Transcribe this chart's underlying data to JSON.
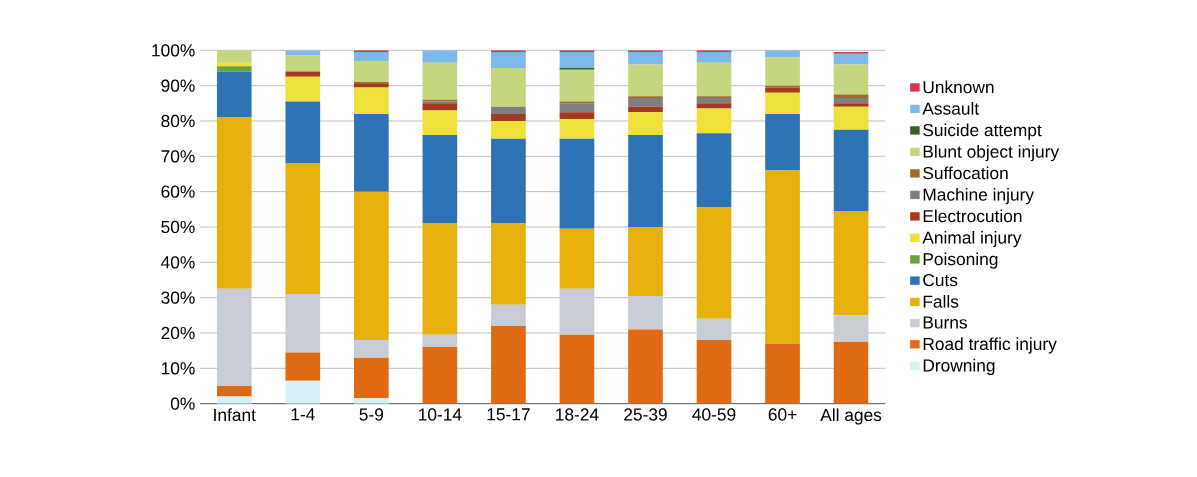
{
  "chart_data": {
    "type": "bar",
    "stacked": true,
    "categories": [
      "Infant",
      "1-4",
      "5-9",
      "10-14",
      "15-17",
      "18-24",
      "25-39",
      "40-59",
      "60+",
      "All ages"
    ],
    "series": [
      {
        "name": "Drowning",
        "color": "#d8f0f8",
        "values": [
          2,
          6.5,
          1.5,
          0,
          0,
          0,
          0,
          0,
          0,
          0
        ]
      },
      {
        "name": "Road traffic injury",
        "color": "#e06a14",
        "values": [
          3,
          8,
          11.5,
          16,
          22,
          19.5,
          21,
          18,
          17,
          17.5
        ]
      },
      {
        "name": "Burns",
        "color": "#c8ccd4",
        "values": [
          27.5,
          16.5,
          5,
          3.5,
          6,
          13,
          9.5,
          6,
          0,
          7.5
        ]
      },
      {
        "name": "Falls",
        "color": "#e8b00c",
        "values": [
          48.5,
          37,
          42,
          31.5,
          23,
          17,
          19.5,
          31.5,
          49,
          29.5
        ]
      },
      {
        "name": "Cuts",
        "color": "#2e74b5",
        "values": [
          13,
          17.5,
          22,
          25,
          24,
          25.5,
          26,
          21,
          16,
          23
        ]
      },
      {
        "name": "Poisoning",
        "color": "#6aa33a",
        "values": [
          1.5,
          0,
          0,
          0,
          0,
          0,
          0,
          0,
          0,
          0
        ]
      },
      {
        "name": "Animal injury",
        "color": "#f0e03a",
        "values": [
          1,
          7,
          7.5,
          7,
          5,
          5.5,
          6.5,
          7,
          6,
          6.5
        ]
      },
      {
        "name": "Electrocution",
        "color": "#a33a1e",
        "values": [
          0,
          1.5,
          1,
          2,
          2,
          2,
          1.5,
          1.5,
          1.5,
          1
        ]
      },
      {
        "name": "Machine injury",
        "color": "#7f7f7f",
        "values": [
          0,
          0,
          0,
          0.5,
          2,
          2.5,
          2.5,
          1.5,
          0,
          1.5
        ]
      },
      {
        "name": "Suffocation",
        "color": "#9c6b2e",
        "values": [
          0,
          0,
          0.5,
          0.5,
          0,
          0.5,
          0.5,
          0.5,
          0.5,
          1
        ]
      },
      {
        "name": "Blunt object injury",
        "color": "#c4d67e",
        "values": [
          3.5,
          4.5,
          6,
          10.5,
          11,
          9,
          9,
          9.5,
          8,
          8.5
        ]
      },
      {
        "name": "Suicide attempt",
        "color": "#3a5f2a",
        "values": [
          0,
          0,
          0,
          0,
          0,
          0.5,
          0,
          0,
          0,
          0
        ]
      },
      {
        "name": "Assault",
        "color": "#7db9e8",
        "values": [
          0,
          1.5,
          2.5,
          3.5,
          4.5,
          4.5,
          3.5,
          3,
          2,
          3
        ]
      },
      {
        "name": "Unknown",
        "color": "#d6335a",
        "values": [
          0,
          0,
          0.5,
          0,
          0.5,
          0.5,
          0.5,
          0.5,
          0,
          0.5
        ]
      }
    ],
    "ylim": [
      0,
      100
    ],
    "yticks": [
      {
        "value": 0,
        "label": "0%"
      },
      {
        "value": 10,
        "label": "10%"
      },
      {
        "value": 20,
        "label": "20%"
      },
      {
        "value": 30,
        "label": "30%"
      },
      {
        "value": 40,
        "label": "40%"
      },
      {
        "value": 50,
        "label": "50%"
      },
      {
        "value": 60,
        "label": "60%"
      },
      {
        "value": 70,
        "label": "70%"
      },
      {
        "value": 80,
        "label": "80%"
      },
      {
        "value": 90,
        "label": "90%"
      },
      {
        "value": 100,
        "label": "100%"
      }
    ],
    "grid": "y",
    "legend": "right"
  }
}
